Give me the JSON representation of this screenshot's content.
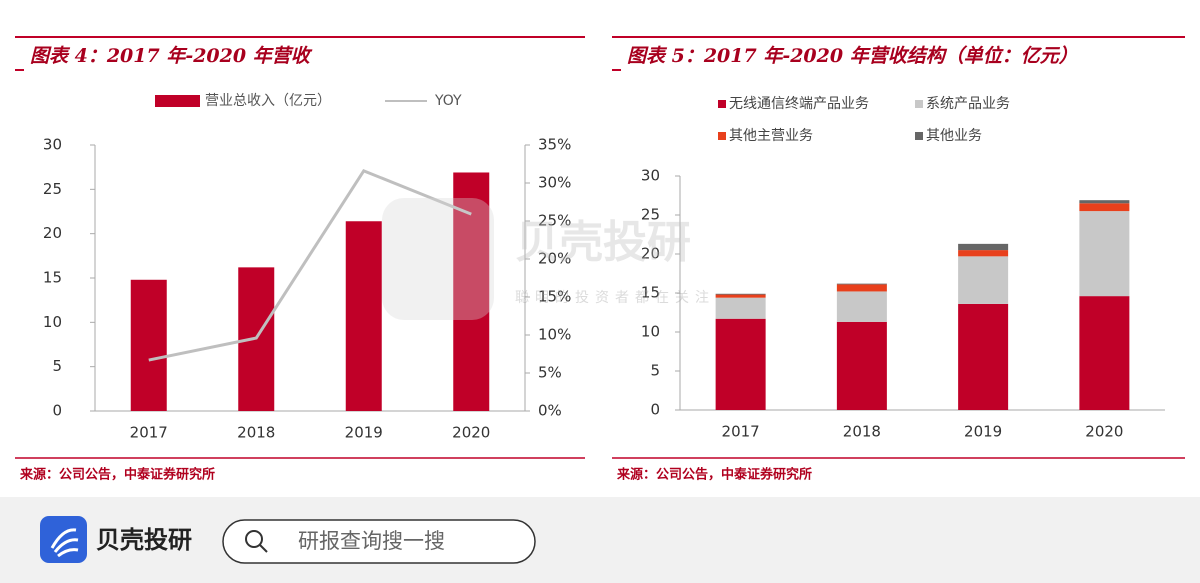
{
  "chart_data": [
    {
      "type": "bar_line",
      "title": "图表 4：2017 年-2020 年营收",
      "categories": [
        "2017",
        "2018",
        "2019",
        "2020"
      ],
      "series": [
        {
          "name": "营业总收入（亿元）",
          "color": "#c00028",
          "values": [
            14.8,
            16.2,
            21.4,
            26.9
          ]
        },
        {
          "name": "YOY",
          "color": "#bfbfbf",
          "axis": "y2",
          "values": [
            6.7,
            9.6,
            31.6,
            25.9
          ]
        }
      ],
      "ylim": [
        0,
        30
      ],
      "yticks": [
        0,
        5,
        10,
        15,
        20,
        25,
        30
      ],
      "y2lim": [
        0,
        35
      ],
      "y2ticks": [
        {
          "value": 0,
          "label": "0%"
        },
        {
          "value": 5,
          "label": "5%"
        },
        {
          "value": 10,
          "label": "10%"
        },
        {
          "value": 15,
          "label": "15%"
        },
        {
          "value": 20,
          "label": "20%"
        },
        {
          "value": 25,
          "label": "25%"
        },
        {
          "value": 30,
          "label": "30%"
        },
        {
          "value": 35,
          "label": "35%"
        }
      ],
      "source": "来源：公司公告，中泰证券研究所"
    },
    {
      "type": "stacked_bar",
      "title": "图表 5：2017 年-2020 年营收结构（单位：亿元）",
      "categories": [
        "2017",
        "2018",
        "2019",
        "2020"
      ],
      "series": [
        {
          "name": "无线通信终端产品业务",
          "color": "#c00028",
          "values": [
            11.7,
            11.3,
            13.6,
            14.6
          ]
        },
        {
          "name": "系统产品业务",
          "color": "#c8c8c8",
          "values": [
            2.7,
            3.9,
            6.1,
            10.9
          ]
        },
        {
          "name": "其他主营业务",
          "color": "#e8401c",
          "values": [
            0.4,
            0.9,
            0.8,
            1.0
          ]
        },
        {
          "name": "其他业务",
          "color": "#666666",
          "values": [
            0.1,
            0.1,
            0.8,
            0.4
          ]
        }
      ],
      "ylim": [
        0,
        30
      ],
      "yticks": [
        0,
        5,
        10,
        15,
        20,
        25,
        30
      ],
      "source": "来源：公司公告，中泰证券研究所"
    }
  ],
  "watermark": {
    "brand": "贝壳投研",
    "slogan": "聪明的投资者都在关注"
  },
  "footer": {
    "brand": "贝壳投研",
    "search_placeholder": "研报查询搜一搜"
  }
}
